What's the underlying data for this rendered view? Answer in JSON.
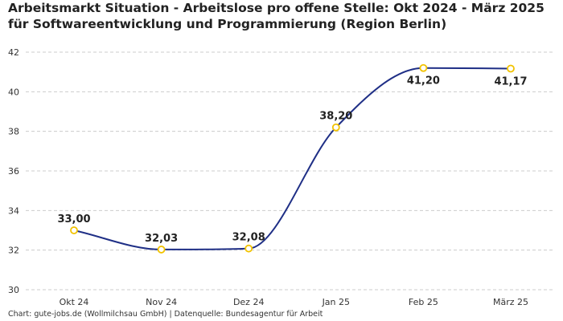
{
  "chart_data": {
    "type": "line",
    "title": "Arbeitsmarkt Situation - Arbeitslose pro offene Stelle: Okt 2024 - März 2025 für Softwareentwicklung und Programmierung (Region Berlin)",
    "categories": [
      "Okt 24",
      "Nov 24",
      "Dez 24",
      "Jan 25",
      "Feb 25",
      "März 25"
    ],
    "series": [
      {
        "name": "Arbeitslose pro offene Stelle",
        "values": [
          33.0,
          32.03,
          32.08,
          38.2,
          41.2,
          41.17
        ],
        "labels": [
          "33,00",
          "32,03",
          "32,08",
          "38,20",
          "41,20",
          "41,17"
        ]
      }
    ],
    "ylim": [
      30,
      42
    ],
    "yticks": [
      30,
      32,
      34,
      36,
      38,
      40,
      42
    ],
    "grid": true,
    "line_color": "#1f2f86",
    "marker_color": "#f2c300",
    "grid_color": "#cccccc"
  },
  "footer": {
    "source": "Chart: gute-jobs.de (Wollmilchsau GmbH) | Datenquelle: Bundesagentur für Arbeit"
  }
}
